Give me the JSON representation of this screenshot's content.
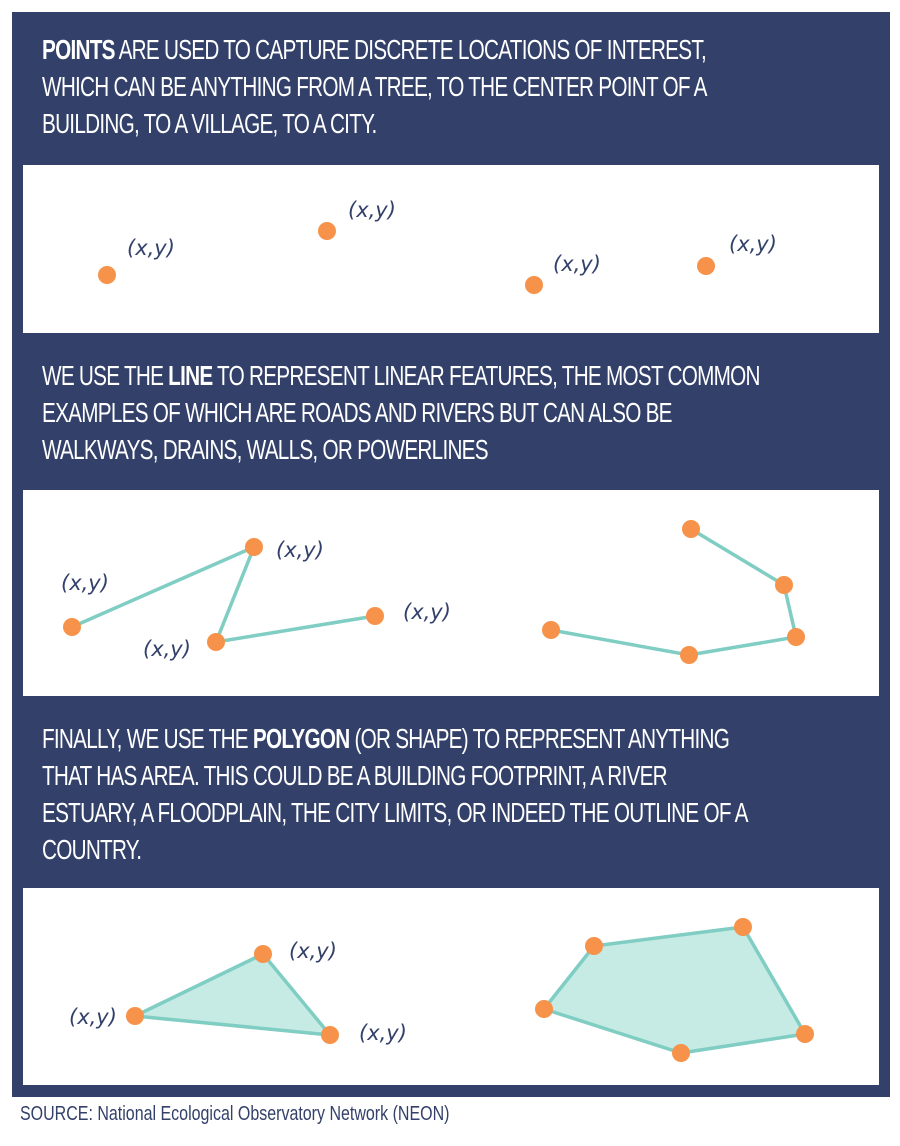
{
  "colors": {
    "background": "#33416a",
    "panel": "#ffffff",
    "point": "#f7924a",
    "line": "#7fcdc3",
    "polygon_fill": "#c6ebe4",
    "label": "#33416a"
  },
  "points_section": {
    "keyword": "POINTS",
    "line1_rest": " ARE USED TO CAPTURE DISCRETE LOCATIONS OF INTEREST,",
    "line2": "WHICH CAN BE ANYTHING FROM A TREE, TO THE CENTER POINT OF A",
    "line3": "BUILDING, TO A VILLAGE, TO A CITY."
  },
  "line_section": {
    "prefix": "WE USE THE ",
    "keyword": "LINE",
    "line1_rest": " TO REPRESENT LINEAR FEATURES, THE MOST COMMON",
    "line2": "EXAMPLES OF WHICH ARE ROADS AND RIVERS BUT CAN ALSO BE",
    "line3": "WALKWAYS, DRAINS, WALLS, OR POWERLINES"
  },
  "polygon_section": {
    "prefix": "FINALLY, WE USE THE ",
    "keyword": "POLYGON",
    "line1_rest": " (OR SHAPE) TO REPRESENT ANYTHING",
    "line2": "THAT HAS AREA. THIS COULD BE A BUILDING FOOTPRINT, A RIVER",
    "line3": "ESTUARY, A FLOODPLAIN, THE CITY LIMITS, OR INDEED THE OUTLINE OF A",
    "line4": "COUNTRY."
  },
  "coordinate_label": "(x,y)",
  "source": "SOURCE: National Ecological Observatory Network (NEON)"
}
